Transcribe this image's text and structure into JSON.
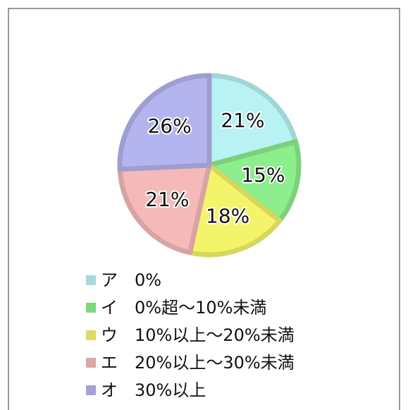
{
  "chart_data": {
    "type": "pie",
    "categories": [
      "ア　0%",
      "イ　0%超～10%未満",
      "ウ　10%以上～20%未満",
      "エ　20%以上～30%未満",
      "オ　30%以上"
    ],
    "values": [
      21,
      15,
      18,
      21,
      26
    ],
    "value_labels": [
      "21%",
      "15%",
      "18%",
      "21%",
      "26%"
    ],
    "colors": [
      "#b8f2f2",
      "#8cee8c",
      "#f4f46a",
      "#f6b9b9",
      "#b4b4ee"
    ],
    "legend": "bottom"
  }
}
